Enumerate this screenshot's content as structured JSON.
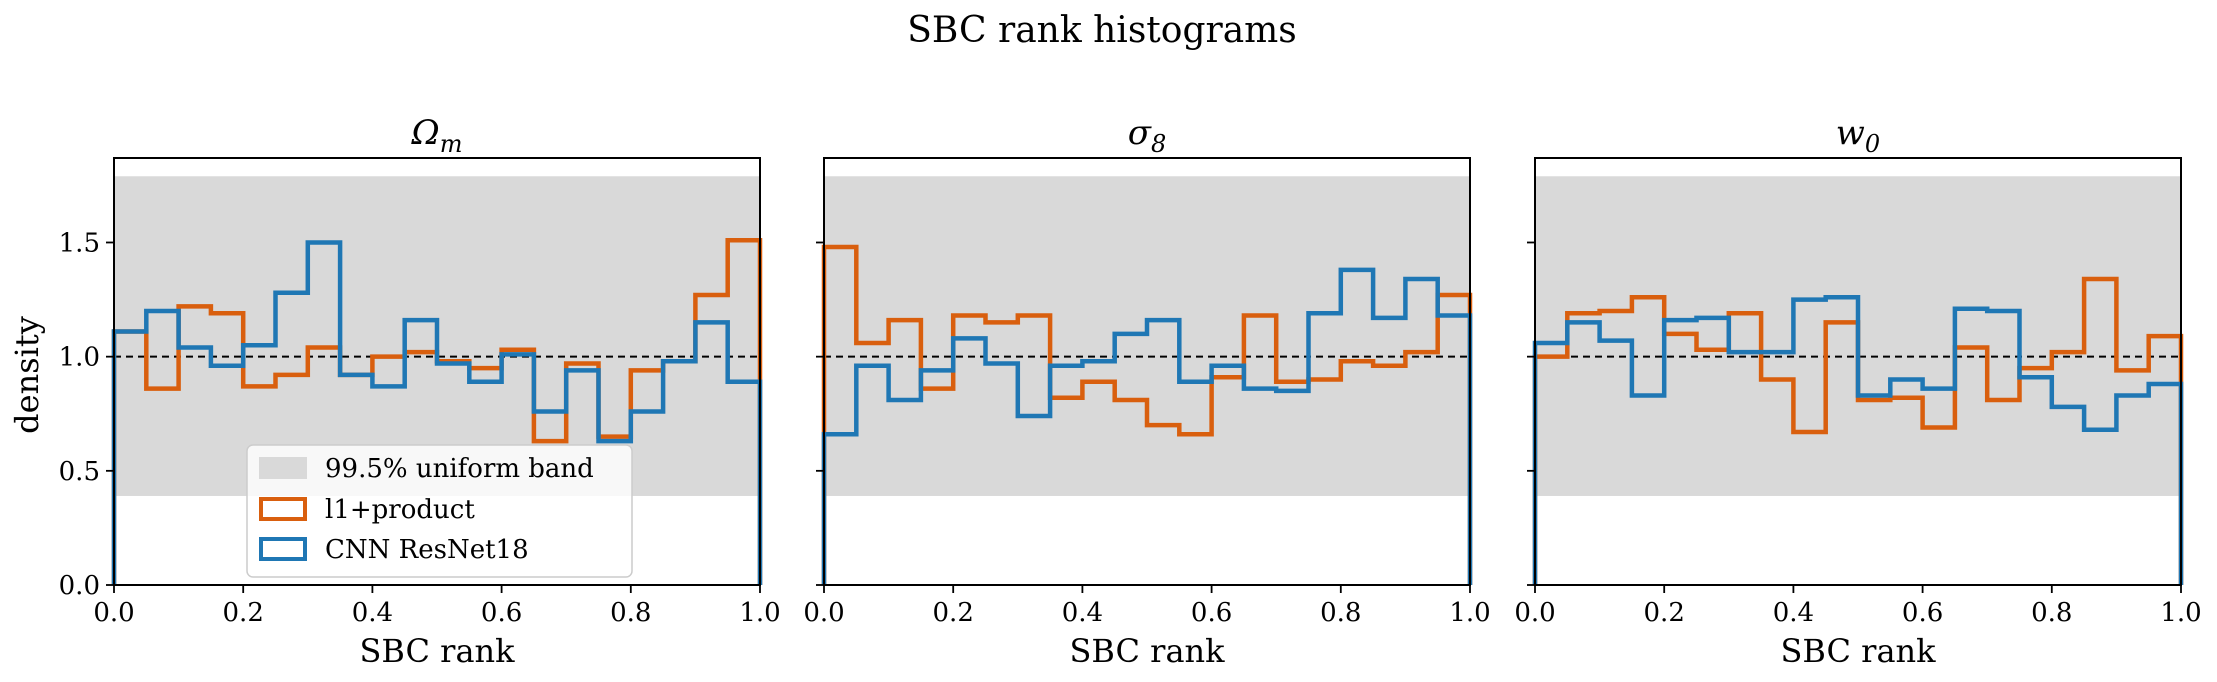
{
  "figure": {
    "title": "SBC rank histograms",
    "ylabel": "density",
    "xlabel": "SBC rank"
  },
  "legend": {
    "entries": [
      {
        "label": "99.5% uniform band",
        "kind": "band"
      },
      {
        "label": "l1+product",
        "kind": "line",
        "color": "#d95f0e"
      },
      {
        "label": "CNN ResNet18",
        "kind": "line",
        "color": "#1f77b4"
      }
    ]
  },
  "colors": {
    "band": "#d9d9d9",
    "series_a": "#d95f0e",
    "series_b": "#1f77b4",
    "reference": "#000000"
  },
  "chart_data": [
    {
      "type": "bar",
      "style": "step-histogram",
      "title": "Ω_m",
      "xlabel": "SBC rank",
      "ylabel": "density",
      "xlim": [
        0,
        1
      ],
      "ylim": [
        0,
        1.87
      ],
      "xticks": [
        "0.0",
        "0.2",
        "0.4",
        "0.6",
        "0.8",
        "1.0"
      ],
      "yticks": [
        "0.0",
        "0.5",
        "1.0",
        "1.5"
      ],
      "band": [
        0.39,
        1.79
      ],
      "reference_line": 1.0,
      "bins": 20,
      "series": [
        {
          "name": "l1+product",
          "values": [
            1.11,
            0.86,
            1.22,
            1.19,
            0.87,
            0.92,
            1.04,
            0.92,
            1.0,
            1.02,
            0.98,
            0.95,
            1.03,
            0.63,
            0.97,
            0.65,
            0.94,
            0.98,
            1.27,
            1.51
          ]
        },
        {
          "name": "CNN ResNet18",
          "values": [
            1.11,
            1.2,
            1.04,
            0.96,
            1.05,
            1.28,
            1.5,
            0.92,
            0.87,
            1.16,
            0.97,
            0.89,
            1.01,
            0.76,
            0.94,
            0.63,
            0.76,
            0.98,
            1.15,
            0.89
          ]
        }
      ]
    },
    {
      "type": "bar",
      "style": "step-histogram",
      "title": "σ_8",
      "xlabel": "SBC rank",
      "ylabel": "",
      "xlim": [
        0,
        1
      ],
      "ylim": [
        0,
        1.87
      ],
      "xticks": [
        "0.0",
        "0.2",
        "0.4",
        "0.6",
        "0.8",
        "1.0"
      ],
      "yticks": [],
      "band": [
        0.39,
        1.79
      ],
      "reference_line": 1.0,
      "bins": 20,
      "series": [
        {
          "name": "l1+product",
          "values": [
            1.48,
            1.06,
            1.16,
            0.86,
            1.18,
            1.15,
            1.18,
            0.82,
            0.89,
            0.81,
            0.7,
            0.66,
            0.91,
            1.18,
            0.89,
            0.9,
            0.98,
            0.96,
            1.02,
            1.27
          ]
        },
        {
          "name": "CNN ResNet18",
          "values": [
            0.66,
            0.96,
            0.81,
            0.94,
            1.08,
            0.97,
            0.74,
            0.96,
            0.98,
            1.1,
            1.16,
            0.89,
            0.96,
            0.86,
            0.85,
            1.19,
            1.38,
            1.17,
            1.34,
            1.18
          ]
        }
      ]
    },
    {
      "type": "bar",
      "style": "step-histogram",
      "title": "w_0",
      "xlabel": "SBC rank",
      "ylabel": "",
      "xlim": [
        0,
        1
      ],
      "ylim": [
        0,
        1.87
      ],
      "xticks": [
        "0.0",
        "0.2",
        "0.4",
        "0.6",
        "0.8",
        "1.0"
      ],
      "yticks": [],
      "band": [
        0.39,
        1.79
      ],
      "reference_line": 1.0,
      "bins": 20,
      "series": [
        {
          "name": "l1+product",
          "values": [
            1.0,
            1.19,
            1.2,
            1.26,
            1.1,
            1.03,
            1.19,
            0.9,
            0.67,
            1.15,
            0.81,
            0.82,
            0.69,
            1.04,
            0.81,
            0.95,
            1.02,
            1.34,
            0.94,
            1.09
          ]
        },
        {
          "name": "CNN ResNet18",
          "values": [
            1.06,
            1.15,
            1.07,
            0.83,
            1.16,
            1.17,
            1.02,
            1.02,
            1.25,
            1.26,
            0.83,
            0.9,
            0.86,
            1.21,
            1.2,
            0.91,
            0.78,
            0.68,
            0.83,
            0.88
          ]
        }
      ]
    }
  ]
}
